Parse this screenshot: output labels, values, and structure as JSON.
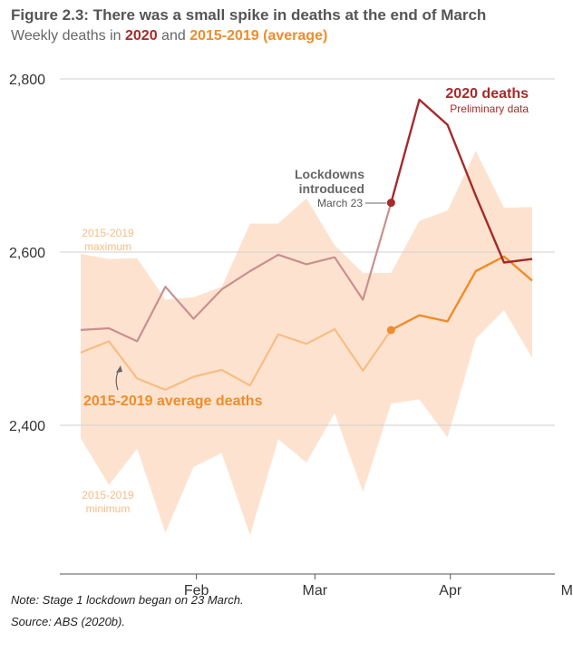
{
  "title": "Figure 2.3: There was a small spike in deaths at the end of March",
  "subtitle": {
    "prefix": "Weekly deaths in ",
    "series_2020": "2020",
    "middle": " and ",
    "series_avg": "2015-2019 (average)"
  },
  "colors": {
    "deaths_2020": "#a52a2a",
    "deaths_2020_faded": "#c98f8f",
    "average": "#f08c2a",
    "average_faded": "#f7bd85",
    "range_band": "#fde3cf",
    "annotation": "#666666"
  },
  "annotations": {
    "label_2020": "2020 deaths",
    "label_2020_sub": "Preliminary data",
    "lockdown": [
      "Lockdowns",
      "introduced"
    ],
    "lockdown_date": "March 23",
    "max_label": [
      "2015-2019",
      "maximum"
    ],
    "min_label": [
      "2015-2019",
      "minimum"
    ],
    "avg_label": "2015-2019 average deaths"
  },
  "notes": {
    "note": "Note: Stage 1 lockdown began on 23 March.",
    "source": "Source: ABS (2020b)."
  },
  "chart_data": {
    "type": "line",
    "x_unit": "week",
    "x": [
      1,
      2,
      3,
      4,
      5,
      6,
      7,
      8,
      9,
      10,
      11,
      12,
      13,
      14,
      15,
      16,
      17,
      18,
      19
    ],
    "x_ticks": [
      {
        "label": "Feb",
        "x": 5.1
      },
      {
        "label": "Mar",
        "x": 9.3
      },
      {
        "label": "Apr",
        "x": 14.1
      },
      {
        "label": "May",
        "x": 18.5
      }
    ],
    "ylim": [
      2250,
      2820
    ],
    "y_ticks": [
      2400,
      2600,
      2800
    ],
    "grid": true,
    "series": [
      {
        "name": "2020 deaths",
        "values": [
          2510,
          2512,
          2497,
          2560,
          2523,
          2557,
          2578,
          2597,
          2586,
          2594,
          2545,
          2657,
          2776,
          2747,
          2665,
          2588,
          2592,
          null,
          null
        ]
      },
      {
        "name": "2015-2019 average deaths",
        "values": [
          2484,
          2497,
          2454,
          2441,
          2456,
          2464,
          2446,
          2505,
          2494,
          2511,
          2463,
          2510,
          2527,
          2520,
          2578,
          2595,
          2567,
          null,
          null
        ]
      }
    ],
    "range": {
      "max": [
        2598,
        2592,
        2593,
        2545,
        2548,
        2560,
        2633,
        2633,
        2662,
        2608,
        2576,
        2576,
        2636,
        2648,
        2717,
        2651,
        2652,
        null,
        null
      ],
      "min": [
        2385,
        2331,
        2373,
        2276,
        2352,
        2368,
        2273,
        2384,
        2357,
        2414,
        2323,
        2425,
        2430,
        2386,
        2500,
        2533,
        2478,
        null,
        null
      ]
    },
    "marker_index": 11
  }
}
